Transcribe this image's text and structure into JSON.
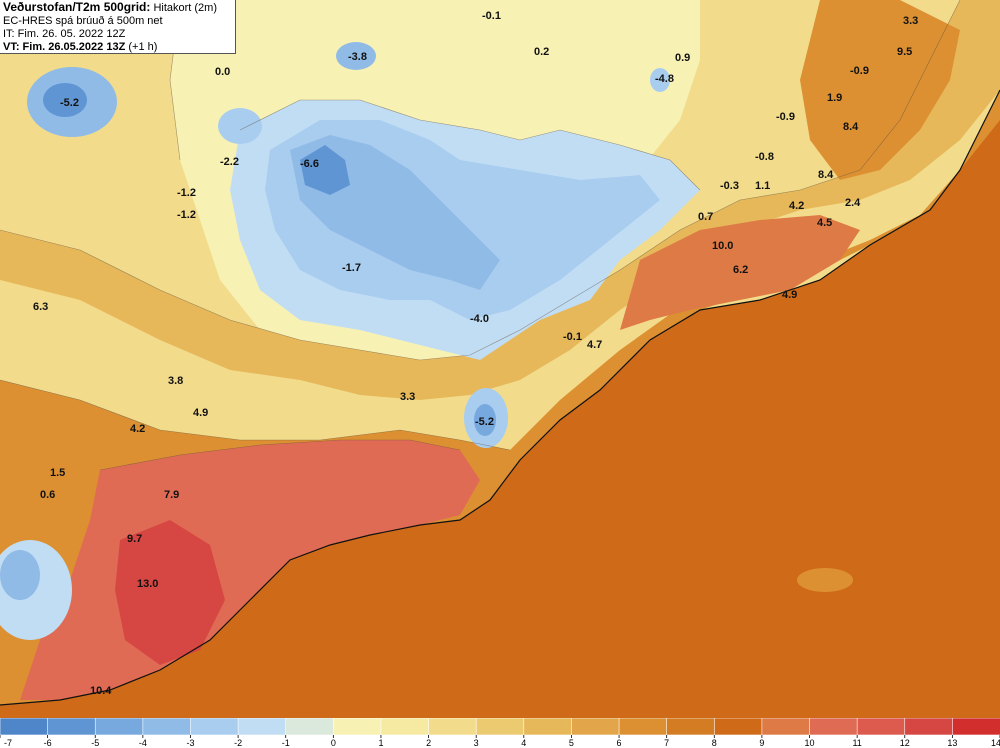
{
  "header": {
    "title_bold": "Veðurstofan/T2m 500grid:",
    "title_rest": "Hitakort (2m)",
    "model": "EC-HRES spá brúuð á 500m net",
    "it_label": "IT: Fim. 26. 05. 2022 12Z",
    "vt_label": "VT: Fim. 26.05.2022 13Z",
    "vt_offset": "(+1 h)"
  },
  "colorbar": {
    "ticks": [
      "-7",
      "-6",
      "-5",
      "-4",
      "-3",
      "-2",
      "-1",
      "0",
      "1",
      "2",
      "3",
      "4",
      "5",
      "6",
      "7",
      "8",
      "9",
      "10",
      "11",
      "12",
      "13",
      "14"
    ],
    "colors": [
      "#4f86c9",
      "#5f95d3",
      "#77a8de",
      "#90bbe7",
      "#a9cdef",
      "#c1ddf4",
      "#dbe9dc",
      "#f7f1b4",
      "#f6e9a2",
      "#f2dc8c",
      "#ecca70",
      "#e6b85a",
      "#e2a54a",
      "#dc9032",
      "#d47c24",
      "#cf6b18",
      "#de7a45",
      "#e06b55",
      "#dd5a4e",
      "#d64642",
      "#d22e2e"
    ]
  },
  "map_labels": [
    {
      "text": "-5.2"
    },
    {
      "text": "-3.8"
    },
    {
      "text": "0.0"
    },
    {
      "text": "-2.2"
    },
    {
      "text": "-6.6"
    },
    {
      "text": "-1.2"
    },
    {
      "text": "-1.2"
    },
    {
      "text": "-1.7"
    },
    {
      "text": "-4.0"
    },
    {
      "text": "-0.1"
    },
    {
      "text": "0.2"
    },
    {
      "text": "-4.8"
    },
    {
      "text": "0.9"
    },
    {
      "text": "3.3"
    },
    {
      "text": "9.5"
    },
    {
      "text": "-0.9"
    },
    {
      "text": "1.9"
    },
    {
      "text": "-0.9"
    },
    {
      "text": "8.4"
    },
    {
      "text": "-0.8"
    },
    {
      "text": "8.4"
    },
    {
      "text": "-0.3"
    },
    {
      "text": "1.1"
    },
    {
      "text": "4.2"
    },
    {
      "text": "2.4"
    },
    {
      "text": "0.7"
    },
    {
      "text": "4.5"
    },
    {
      "text": "10.0"
    },
    {
      "text": "6.2"
    },
    {
      "text": "4.9"
    },
    {
      "text": "-0.1"
    },
    {
      "text": "4.7"
    },
    {
      "text": "6.3"
    },
    {
      "text": "3.8"
    },
    {
      "text": "3.3"
    },
    {
      "text": "4.9"
    },
    {
      "text": "4.2"
    },
    {
      "text": "-5.2"
    },
    {
      "text": "1.5"
    },
    {
      "text": "0.6"
    },
    {
      "text": "7.9"
    },
    {
      "text": "9.7"
    },
    {
      "text": "13.0"
    },
    {
      "text": "10.4"
    }
  ]
}
